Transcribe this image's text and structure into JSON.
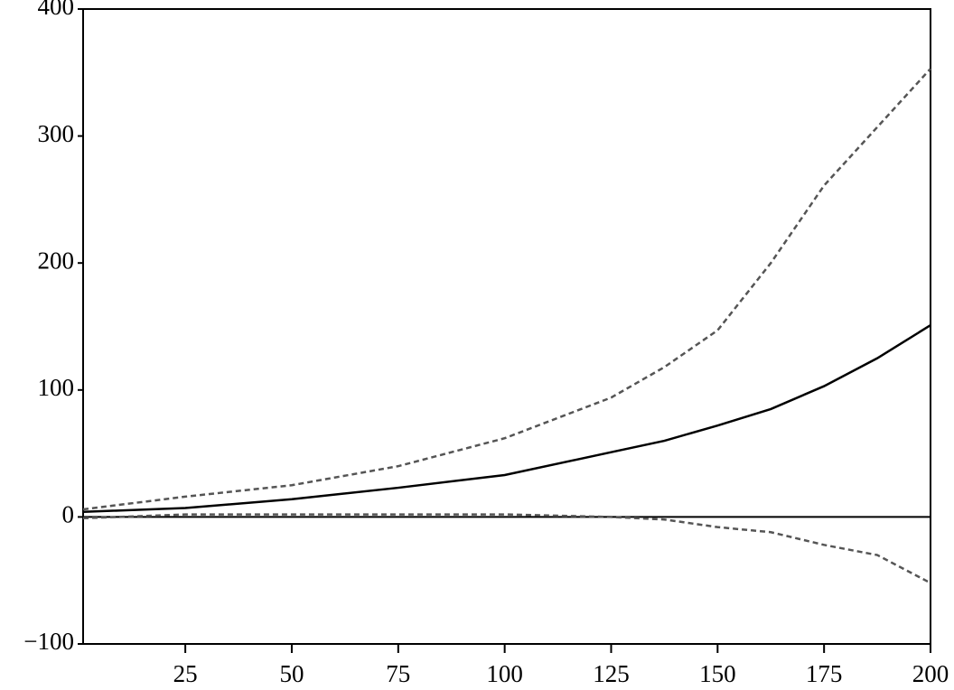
{
  "chart_data": {
    "type": "line",
    "x": [
      1,
      25,
      50,
      75,
      100,
      125,
      137.5,
      150,
      162.5,
      175,
      187.5,
      200
    ],
    "series": [
      {
        "color": "#000000",
        "dash": false,
        "values": [
          4,
          7,
          14,
          23,
          33,
          51,
          60,
          72,
          85,
          103,
          125,
          151
        ]
      },
      {
        "color": "#555555",
        "dash": true,
        "values": [
          6,
          16,
          25,
          40,
          62,
          94,
          118,
          147,
          200,
          261,
          307,
          353
        ]
      },
      {
        "color": "#555555",
        "dash": true,
        "values": [
          -1,
          2,
          2,
          2,
          2,
          0,
          -2,
          -8,
          -12,
          -22,
          -30,
          -52
        ]
      }
    ],
    "xlim": [
      1,
      200
    ],
    "xticks": [
      25,
      50,
      75,
      100,
      125,
      150,
      175,
      200
    ],
    "ylim": [
      -100,
      400
    ],
    "yticks": [
      {
        "value": -100,
        "label": "−100"
      },
      0,
      100,
      200,
      300,
      400
    ],
    "hline": 0,
    "grid": false
  }
}
